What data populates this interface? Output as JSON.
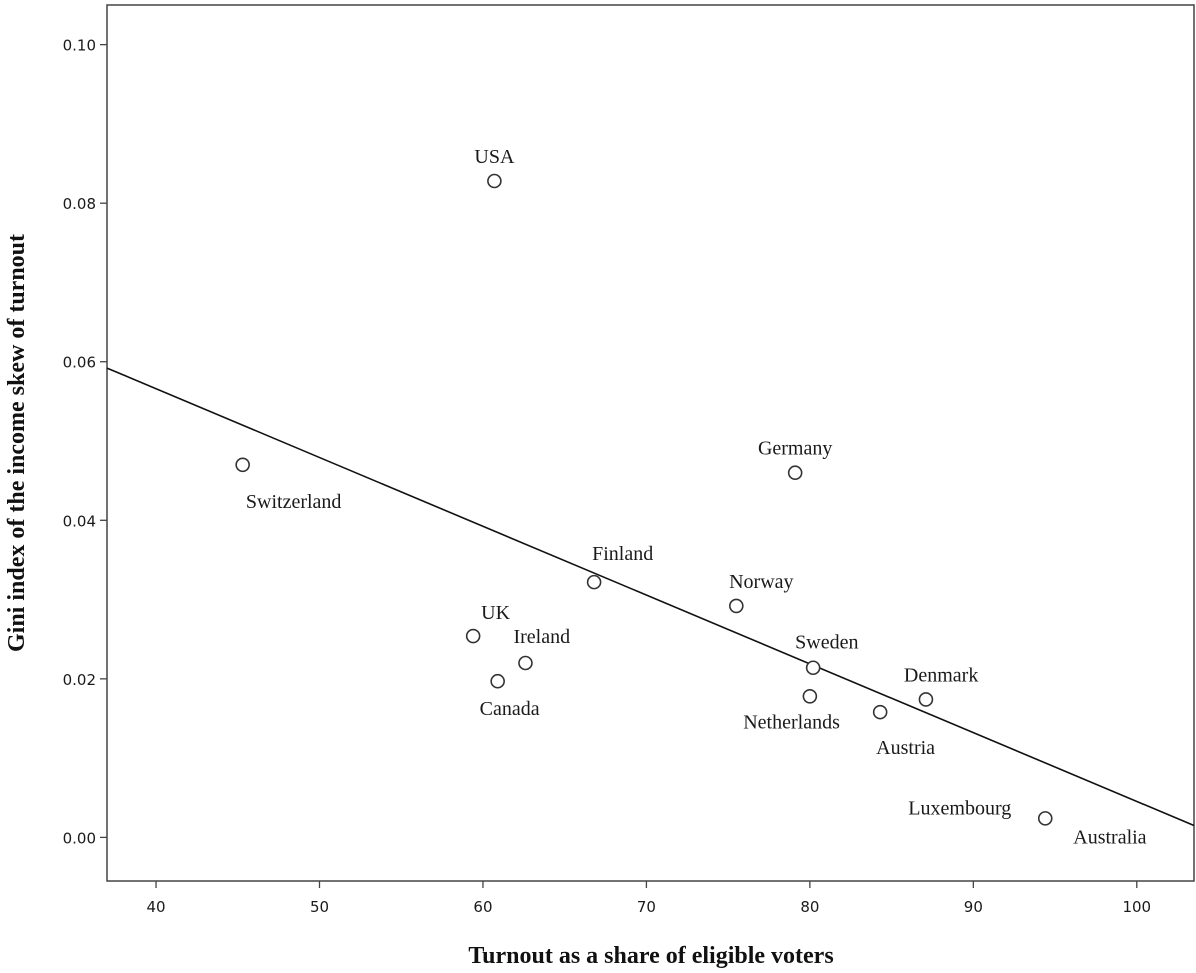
{
  "chart_data": {
    "type": "scatter",
    "title": "",
    "xlabel": "Turnout as a share of eligible voters",
    "ylabel": "Gini index of the income skew of turnout",
    "xlim": [
      37,
      103.5
    ],
    "ylim": [
      -0.0055,
      0.105
    ],
    "xticks": [
      "40",
      "50",
      "60",
      "70",
      "80",
      "90",
      "100"
    ],
    "yticks": [
      "0.00",
      "0.02",
      "0.04",
      "0.06",
      "0.08",
      "0.10"
    ],
    "grid": false,
    "points": [
      {
        "label": "USA",
        "x": 60.7,
        "y": 0.0828,
        "label_pos": "above"
      },
      {
        "label": "Switzerland",
        "x": 45.3,
        "y": 0.047,
        "label_pos": "below"
      },
      {
        "label": "Germany",
        "x": 79.1,
        "y": 0.046,
        "label_pos": "above"
      },
      {
        "label": "Finland",
        "x": 66.8,
        "y": 0.0322,
        "label_pos": "above-right"
      },
      {
        "label": "Norway",
        "x": 75.5,
        "y": 0.0292,
        "label_pos": "above"
      },
      {
        "label": "UK",
        "x": 59.4,
        "y": 0.0254,
        "label_pos": "above-right"
      },
      {
        "label": "Ireland",
        "x": 62.6,
        "y": 0.022,
        "label_pos": "above-right"
      },
      {
        "label": "Canada",
        "x": 60.9,
        "y": 0.0197,
        "label_pos": "below"
      },
      {
        "label": "Sweden",
        "x": 80.2,
        "y": 0.0214,
        "label_pos": "above-right"
      },
      {
        "label": "Netherlands",
        "x": 80.0,
        "y": 0.0178,
        "label_pos": "below-left"
      },
      {
        "label": "Denmark",
        "x": 87.1,
        "y": 0.0174,
        "label_pos": "above-right"
      },
      {
        "label": "Austria",
        "x": 84.3,
        "y": 0.0158,
        "label_pos": "below-right"
      },
      {
        "label": "Luxembourg",
        "x": 94.4,
        "y": 0.0024,
        "label_pos": "left"
      },
      {
        "label": "Australia",
        "x": 94.4,
        "y": 0.0024,
        "label_pos": "below-right"
      }
    ],
    "fit_line": {
      "x": [
        37,
        103.5
      ],
      "y": [
        0.0592,
        0.0015
      ]
    }
  }
}
